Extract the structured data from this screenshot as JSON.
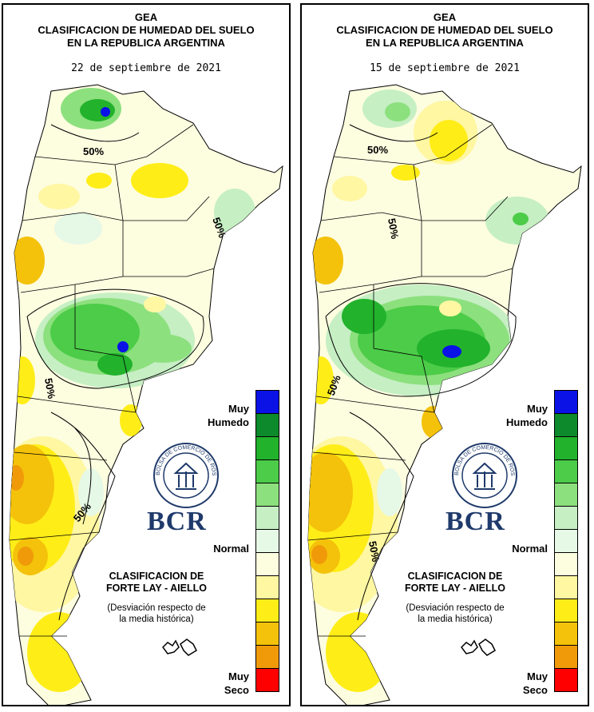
{
  "colors": {
    "scale": [
      "#0a12e6",
      "#0c8a2c",
      "#22b22c",
      "#4ccc48",
      "#8de07e",
      "#c6efc4",
      "#e6f8e6",
      "#fdfde0",
      "#fff7a2",
      "#ffed18",
      "#f4c20a",
      "#f09a0a",
      "#ff0000"
    ],
    "brand": "#1f3a6b"
  },
  "panels": [
    {
      "title_1": "GEA",
      "title_2": "CLASIFICACION DE HUMEDAD DEL SUELO",
      "title_3": "EN LA REPUBLICA ARGENTINA",
      "date": "22 de septiembre de 2021",
      "contour_labels": [
        "50%",
        "50%",
        "50%",
        "50%"
      ]
    },
    {
      "title_1": "GEA",
      "title_2": "CLASIFICACION DE HUMEDAD DEL SUELO",
      "title_3": "EN LA REPUBLICA ARGENTINA",
      "date": "15 de septiembre de 2021",
      "contour_labels": [
        "50%",
        "50%",
        "50%",
        "50%"
      ]
    }
  ],
  "legend": {
    "muy_humedo_1": "Muy",
    "muy_humedo_2": "Humedo",
    "normal": "Normal",
    "muy_seco_1": "Muy",
    "muy_seco_2": "Seco"
  },
  "classification": {
    "title_1": "CLASIFICACION DE",
    "title_2": "FORTE LAY - AIELLO",
    "note_1": "(Desviación respecto de",
    "note_2": "la media histórica)"
  },
  "logo": {
    "text": "BCR",
    "seal_text": "BOLSA DE COMERCIO DE ROSARIO"
  }
}
